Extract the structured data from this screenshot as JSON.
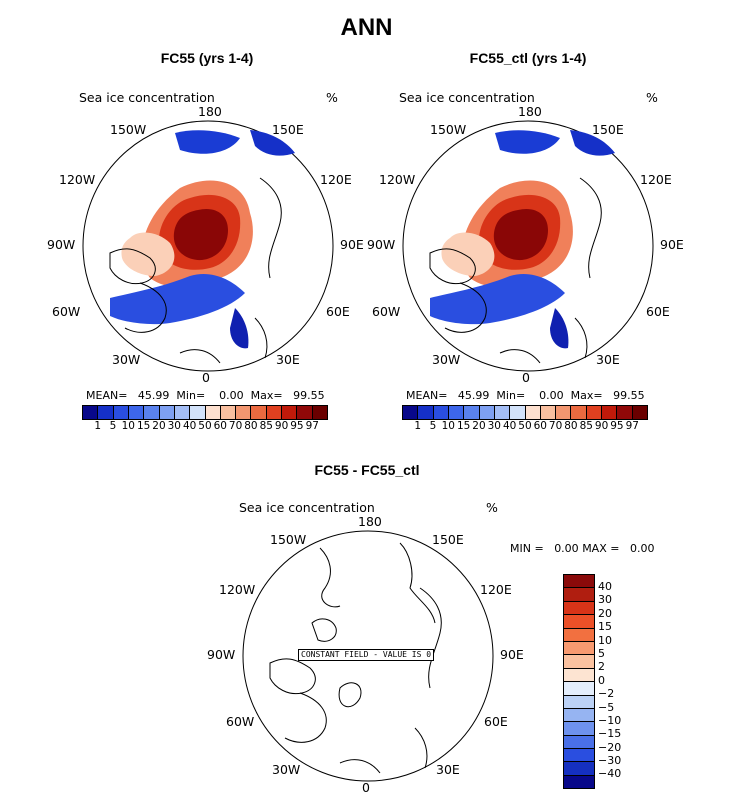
{
  "title": "ANN",
  "panels": {
    "left": {
      "title": "FC55 (yrs 1-4)",
      "variable": "Sea ice concentration",
      "units": "%",
      "stats": {
        "mean_label": "MEAN=",
        "mean": "45.99",
        "min_label": "Min=",
        "min": "0.00",
        "max_label": "Max=",
        "max": "99.55"
      },
      "lon_labels": {
        "n": "180",
        "nw1": "150W",
        "ne1": "150E",
        "nw2": "120W",
        "ne2": "120E",
        "w": "90W",
        "e": "90E",
        "sw2": "60W",
        "se2": "60E",
        "sw1": "30W",
        "se1": "30E",
        "s": "0"
      }
    },
    "right": {
      "title": "FC55_ctl (yrs 1-4)",
      "variable": "Sea ice concentration",
      "units": "%",
      "stats": {
        "mean_label": "MEAN=",
        "mean": "45.99",
        "min_label": "Min=",
        "min": "0.00",
        "max_label": "Max=",
        "max": "99.55"
      },
      "lon_labels": {
        "n": "180",
        "nw1": "150W",
        "ne1": "150E",
        "nw2": "120W",
        "ne2": "120E",
        "w": "90W",
        "e": "90E",
        "sw2": "60W",
        "se2": "60E",
        "sw1": "30W",
        "se1": "30E",
        "s": "0"
      }
    },
    "diff": {
      "title": "FC55 - FC55_ctl",
      "variable": "Sea ice concentration",
      "units": "%",
      "minmax": {
        "min_label": "MIN =",
        "min": "0.00",
        "max_label": "MAX =",
        "max": "0.00"
      },
      "constant_note": "CONSTANT FIELD - VALUE IS 0",
      "lon_labels": {
        "n": "180",
        "nw1": "150W",
        "ne1": "150E",
        "nw2": "120W",
        "ne2": "120E",
        "w": "90W",
        "e": "90E",
        "sw2": "60W",
        "se2": "60E",
        "sw1": "30W",
        "se1": "30E",
        "s": "0"
      }
    }
  },
  "colorbar_main": {
    "labels": [
      "1",
      "5",
      "10",
      "15",
      "20",
      "30",
      "40",
      "50",
      "60",
      "70",
      "80",
      "85",
      "90",
      "95",
      "97"
    ],
    "colors": [
      "#08088a",
      "#1530c8",
      "#2a4ee0",
      "#3d66ea",
      "#5a82ee",
      "#7ea0f2",
      "#a4beF6",
      "#d2e2fa",
      "#fde0cf",
      "#f8bfa0",
      "#f29670",
      "#eb6a40",
      "#e04020",
      "#c01a0a",
      "#900808",
      "#6a0000"
    ]
  },
  "colorbar_diff": {
    "labels": [
      "40",
      "30",
      "20",
      "15",
      "10",
      "5",
      "2",
      "0",
      "−2",
      "−5",
      "−10",
      "−15",
      "−20",
      "−30",
      "−40"
    ],
    "colors": [
      "#8a0a0a",
      "#b01e10",
      "#d83418",
      "#ec5028",
      "#f27040",
      "#f89a70",
      "#fbc2a0",
      "#fde4d2",
      "#e4eefc",
      "#bcd2f6",
      "#96b4f2",
      "#6e92ee",
      "#4a70e8",
      "#2a4ee0",
      "#1530c0",
      "#08088a"
    ]
  }
}
